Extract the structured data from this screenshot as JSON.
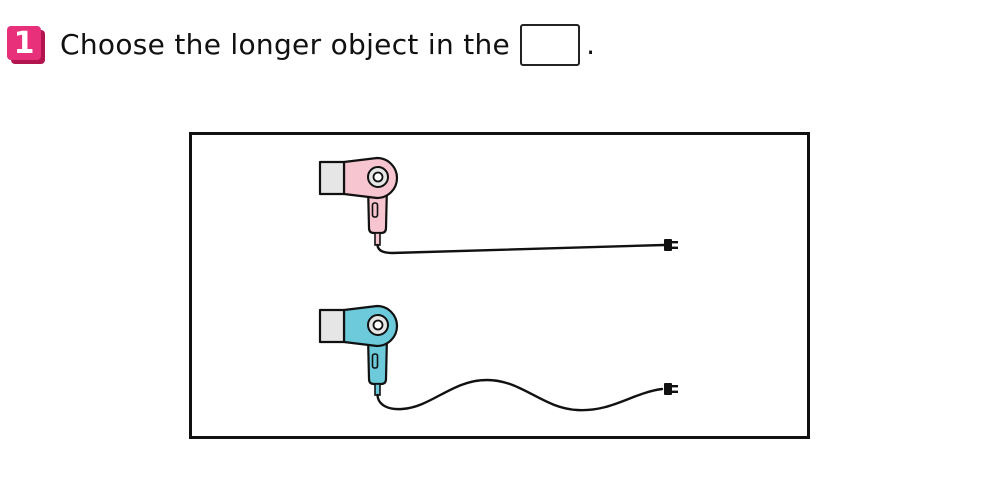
{
  "question": {
    "number": "1",
    "text": "Choose the longer object in the",
    "period": ".",
    "answer_box_value": ""
  },
  "objects": [
    {
      "name": "pink hair dryer with straight cord",
      "color": "#f7c5d0"
    },
    {
      "name": "blue hair dryer with wavy cord",
      "color": "#6ccadb"
    }
  ],
  "colors": {
    "badge": "#e8307a",
    "badge_shadow": "#b3154f",
    "nozzle": "#e6e6e6",
    "line": "#111111"
  }
}
